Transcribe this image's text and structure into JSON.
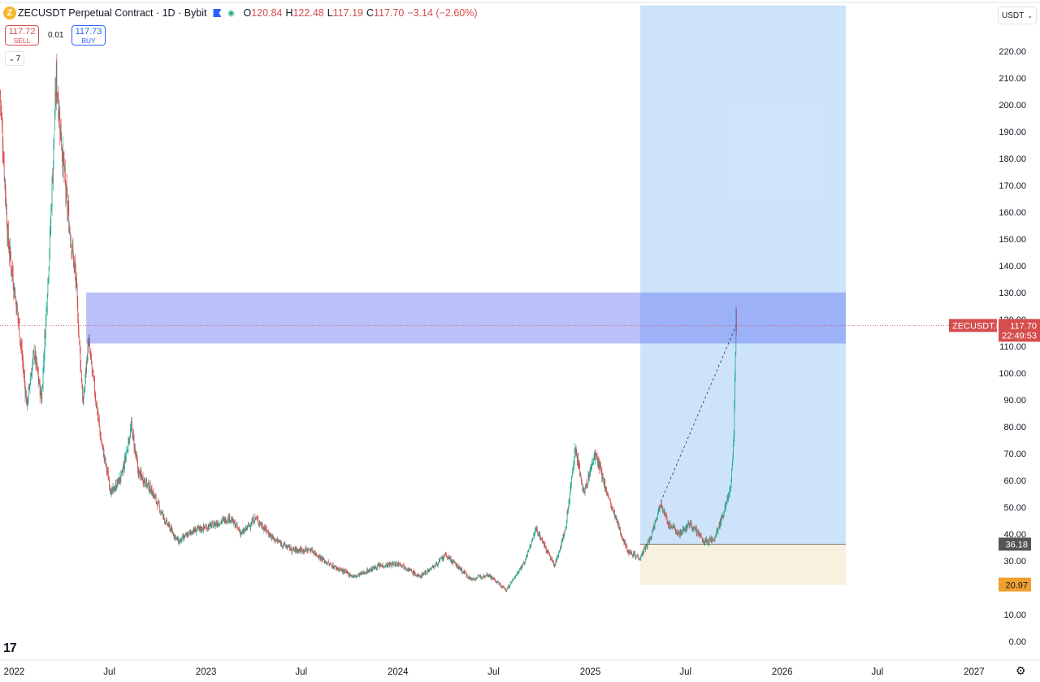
{
  "header": {
    "symbol_title": "ZECUSDT Perpetual Contract · 1D · Bybit",
    "ohlc": {
      "o_label": "O",
      "o": "120.84",
      "h_label": "H",
      "h": "122.48",
      "l_label": "L",
      "l": "117.19",
      "c_label": "C",
      "c": "117.70",
      "change": "−3.14 (−2.60%)"
    }
  },
  "trade": {
    "sell_price": "117.72",
    "sell_label": "SELL",
    "spread": "0.01",
    "buy_price": "117.73",
    "buy_label": "BUY"
  },
  "indicators_toggle": "7",
  "currency_selector": "USDT",
  "icons": [
    "zcash-logo-icon",
    "flag-icon",
    "market-open-dot-icon",
    "chevron-down-icon",
    "tradingview-logo-icon",
    "gear-icon"
  ],
  "colors": {
    "up": "#22ab94",
    "down": "#d64d4d",
    "zone": "#5b6cf2",
    "target_zone": "#90c2f5",
    "stop_zone": "#f6ecd6",
    "price_tag": "#d64d4d",
    "level_tag": "#555555",
    "stop_tag": "#f0a030"
  },
  "chart_data": {
    "type": "candlestick",
    "symbol": "ZECUSDT.P",
    "timeframe": "1D",
    "y_axis": {
      "min": 0,
      "max": 220,
      "step": 10,
      "decimals": 2
    },
    "x_range": [
      "2021-12-05",
      "2027-02-15"
    ],
    "x_ticks": [
      {
        "date": "2022-01-01",
        "label": "2022"
      },
      {
        "date": "2022-07-01",
        "label": "Jul"
      },
      {
        "date": "2023-01-01",
        "label": "2023"
      },
      {
        "date": "2023-07-01",
        "label": "Jul"
      },
      {
        "date": "2024-01-01",
        "label": "2024"
      },
      {
        "date": "2024-07-01",
        "label": "Jul"
      },
      {
        "date": "2025-01-01",
        "label": "2025"
      },
      {
        "date": "2025-07-01",
        "label": "Jul"
      },
      {
        "date": "2026-01-01",
        "label": "2026"
      },
      {
        "date": "2026-07-01",
        "label": "Jul"
      },
      {
        "date": "2027-01-01",
        "label": "2027"
      }
    ],
    "price_path": [
      [
        "2021-12-05",
        205
      ],
      [
        "2021-12-20",
        150
      ],
      [
        "2022-01-10",
        118
      ],
      [
        "2022-01-25",
        88
      ],
      [
        "2022-02-08",
        108
      ],
      [
        "2022-02-22",
        90
      ],
      [
        "2022-03-10",
        150
      ],
      [
        "2022-03-22",
        210
      ],
      [
        "2022-04-10",
        165
      ],
      [
        "2022-04-28",
        135
      ],
      [
        "2022-05-12",
        88
      ],
      [
        "2022-05-22",
        112
      ],
      [
        "2022-06-15",
        75
      ],
      [
        "2022-07-05",
        55
      ],
      [
        "2022-07-25",
        62
      ],
      [
        "2022-08-12",
        80
      ],
      [
        "2022-08-25",
        63
      ],
      [
        "2022-09-20",
        56
      ],
      [
        "2022-10-15",
        45
      ],
      [
        "2022-11-10",
        37
      ],
      [
        "2022-12-05",
        41
      ],
      [
        "2023-01-10",
        43
      ],
      [
        "2023-02-15",
        46
      ],
      [
        "2023-03-10",
        40
      ],
      [
        "2023-04-05",
        46
      ],
      [
        "2023-05-10",
        38
      ],
      [
        "2023-06-15",
        34
      ],
      [
        "2023-07-20",
        34
      ],
      [
        "2023-08-20",
        29
      ],
      [
        "2023-10-10",
        24
      ],
      [
        "2023-11-25",
        28
      ],
      [
        "2024-01-05",
        29
      ],
      [
        "2024-02-10",
        24
      ],
      [
        "2024-03-10",
        28
      ],
      [
        "2024-04-01",
        32
      ],
      [
        "2024-05-20",
        23
      ],
      [
        "2024-06-20",
        25
      ],
      [
        "2024-07-25",
        19
      ],
      [
        "2024-08-30",
        30
      ],
      [
        "2024-09-20",
        42
      ],
      [
        "2024-10-25",
        28
      ],
      [
        "2024-11-15",
        42
      ],
      [
        "2024-12-03",
        72
      ],
      [
        "2024-12-20",
        55
      ],
      [
        "2025-01-10",
        70
      ],
      [
        "2025-02-10",
        50
      ],
      [
        "2025-03-12",
        34
      ],
      [
        "2025-04-05",
        31
      ],
      [
        "2025-04-25",
        38
      ],
      [
        "2025-05-15",
        52
      ],
      [
        "2025-05-28",
        44
      ],
      [
        "2025-06-20",
        40
      ],
      [
        "2025-07-10",
        44
      ],
      [
        "2025-08-05",
        37
      ],
      [
        "2025-08-25",
        38
      ],
      [
        "2025-09-15",
        50
      ],
      [
        "2025-09-25",
        58
      ],
      [
        "2025-10-01",
        75
      ],
      [
        "2025-10-05",
        120
      ],
      [
        "2025-10-06",
        117.7
      ]
    ],
    "resistance_zone": {
      "from": "2022-05-18",
      "to": "2026-05-02",
      "low": 111,
      "high": 130
    },
    "position": {
      "type": "long",
      "from": "2025-04-06",
      "to": "2026-05-02",
      "entry": 36.18,
      "target": 237,
      "stop": 20.97
    },
    "trend_line": [
      [
        "2025-05-15",
        52
      ],
      [
        "2025-10-06",
        118
      ]
    ],
    "last_price": 117.7,
    "price_labels": {
      "symbol_tag": "ZECUSDT.P",
      "last_price": "117.70",
      "countdown": "22:49:53",
      "entry": "36.18",
      "stop": "20.97"
    }
  }
}
